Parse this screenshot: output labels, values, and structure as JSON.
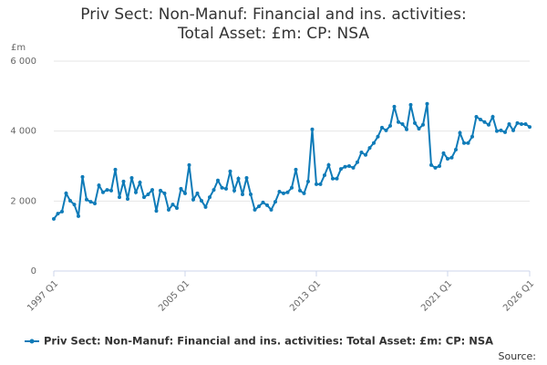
{
  "chart_data": {
    "type": "line",
    "title": "Priv Sect: Non-Manuf: Financial and ins. activities: Total Asset: £m: CP: NSA",
    "y_label": "£m",
    "source": "Source:",
    "categories": [
      "1997 Q1",
      null,
      null,
      null,
      null,
      null,
      null,
      null,
      null,
      null,
      null,
      null,
      null,
      null,
      null,
      null,
      null,
      null,
      null,
      null,
      null,
      null,
      null,
      null,
      null,
      null,
      null,
      null,
      null,
      null,
      null,
      null,
      "2005 Q1",
      null,
      null,
      null,
      null,
      null,
      null,
      null,
      null,
      null,
      null,
      null,
      null,
      null,
      null,
      null,
      null,
      null,
      null,
      null,
      null,
      null,
      null,
      null,
      null,
      null,
      null,
      null,
      null,
      null,
      null,
      null,
      "2013 Q1",
      null,
      null,
      null,
      null,
      null,
      null,
      null,
      null,
      null,
      null,
      null,
      null,
      null,
      null,
      null,
      null,
      null,
      null,
      null,
      null,
      null,
      null,
      null,
      null,
      null,
      null,
      null,
      null,
      null,
      null,
      null,
      "2021 Q1",
      null,
      null,
      null,
      null,
      null,
      null,
      null,
      null,
      null,
      null,
      null,
      null,
      null,
      null,
      null,
      null,
      null,
      null,
      null,
      "2026 Q1"
    ],
    "series": [
      {
        "name": "Priv Sect: Non-Manuf: Financial and ins. activities: Total Asset: £m: CP: NSA",
        "color": "#0f7bb8",
        "values": [
          1490,
          1640,
          1700,
          2220,
          2010,
          1900,
          1570,
          2690,
          2040,
          1980,
          1930,
          2450,
          2250,
          2320,
          2300,
          2900,
          2110,
          2560,
          2060,
          2660,
          2250,
          2530,
          2110,
          2190,
          2320,
          1720,
          2300,
          2220,
          1750,
          1900,
          1800,
          2350,
          2220,
          3030,
          2040,
          2220,
          2010,
          1830,
          2110,
          2320,
          2590,
          2380,
          2350,
          2850,
          2300,
          2640,
          2190,
          2660,
          2190,
          1750,
          1850,
          1960,
          1880,
          1750,
          1980,
          2270,
          2220,
          2250,
          2380,
          2900,
          2300,
          2220,
          2560,
          4050,
          2480,
          2480,
          2740,
          3030,
          2640,
          2640,
          2920,
          2980,
          3000,
          2950,
          3110,
          3390,
          3320,
          3520,
          3660,
          3840,
          4100,
          4020,
          4150,
          4700,
          4260,
          4200,
          4050,
          4750,
          4230,
          4070,
          4180,
          4780,
          3030,
          2950,
          3000,
          3370,
          3210,
          3240,
          3470,
          3950,
          3660,
          3660,
          3840,
          4410,
          4330,
          4260,
          4180,
          4410,
          4000,
          4020,
          3970,
          4200,
          4020,
          4230,
          4200,
          4200,
          4120
        ]
      }
    ],
    "ylim": [
      0,
      6000
    ],
    "yticks": [
      0,
      {
        "value": 2000,
        "label": "2 000"
      },
      {
        "value": 4000,
        "label": "4 000"
      },
      {
        "value": 6000,
        "label": "6 000"
      }
    ],
    "grid": true
  }
}
